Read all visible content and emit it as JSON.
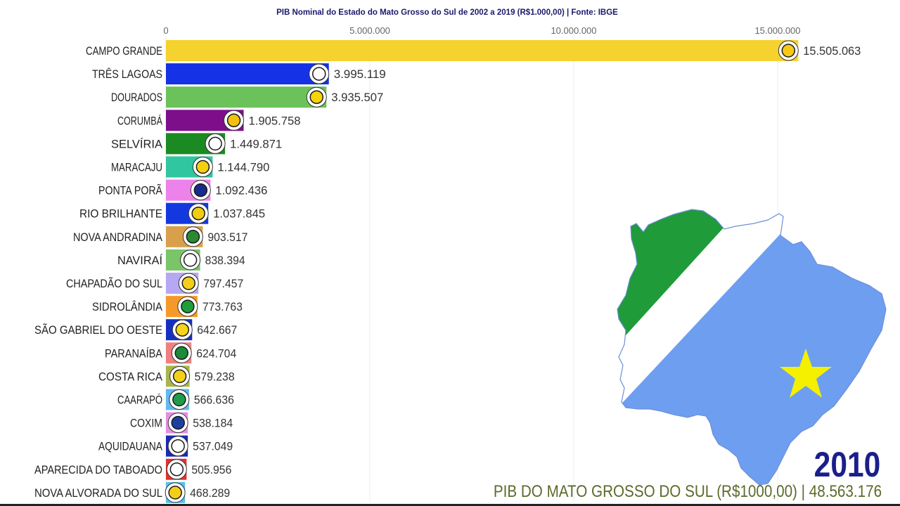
{
  "chart_data": {
    "type": "bar",
    "orientation": "horizontal",
    "title": "PIB Nominal do Estado do Mato Grosso do Sul de 2002 a 2019 (R$1.000,00) | Fonte: IBGE",
    "xlim": [
      0,
      16500000
    ],
    "x_ticks": [
      0,
      5000000,
      10000000,
      15000000
    ],
    "x_tick_labels": [
      "0",
      "5.000.000",
      "10.000.000",
      "15.000.000"
    ],
    "grid": true,
    "categories": [
      "CAMPO GRANDE",
      "TRÊS LAGOAS",
      "DOURADOS",
      "CORUMBÁ",
      "SELVÍRIA",
      "MARACAJU",
      "PONTA PORÃ",
      "RIO BRILHANTE",
      "NOVA ANDRADINA",
      "NAVIRAÍ",
      "CHAPADÃO DO SUL",
      "SIDROLÂNDIA",
      "SÃO GABRIEL DO OESTE",
      "PARANAÍBA",
      "COSTA RICA",
      "CAARAPÓ",
      "COXIM",
      "AQUIDAUANA",
      "APARECIDA DO TABOADO",
      "NOVA ALVORADA DO SUL"
    ],
    "values": [
      15505063,
      3995119,
      3935507,
      1905758,
      1449871,
      1144790,
      1092436,
      1037845,
      903517,
      838394,
      797457,
      773763,
      642667,
      624704,
      579238,
      566636,
      538184,
      537049,
      505956,
      468289
    ],
    "value_labels": [
      "15.505.063",
      "3.995.119",
      "3.935.507",
      "1.905.758",
      "1.449.871",
      "1.144.790",
      "1.092.436",
      "1.037.845",
      "903.517",
      "838.394",
      "797.457",
      "773.763",
      "642.667",
      "624.704",
      "579.238",
      "566.636",
      "538.184",
      "537.049",
      "505.956",
      "468.289"
    ],
    "bar_colors": [
      "#f5d22e",
      "#1632e6",
      "#6cc25a",
      "#7d0f8a",
      "#1c8a22",
      "#2fc6a0",
      "#ec82ea",
      "#1438e0",
      "#d9a04c",
      "#79c567",
      "#b7a8f3",
      "#f59a2a",
      "#1430c4",
      "#f08080",
      "#a9b54b",
      "#62b9f0",
      "#e68ee4",
      "#1a2bb0",
      "#e83030",
      "#58c2e8"
    ],
    "icon_colors": [
      "#f7c815",
      "#ffffff",
      "#f5d40a",
      "#f2c012",
      "#ffffff",
      "#f3d10f",
      "#1a2a8c",
      "#f0cc12",
      "#2a8a32",
      "#ffffff",
      "#f4cf1a",
      "#1d9e3a",
      "#f7d418",
      "#1d8a3a",
      "#f3d01a",
      "#1f9b4a",
      "#1e3fa0",
      "#ffffff",
      "#ffffff",
      "#f4cf1a"
    ]
  },
  "year": "2010",
  "footer": "PIB DO MATO GROSSO DO SUL (R$1000,00) | 48.563.176",
  "map": {
    "flag_colors": {
      "green": "#1f9b3a",
      "white": "#ffffff",
      "blue": "#6e9ef0",
      "star": "#f4f000"
    }
  }
}
